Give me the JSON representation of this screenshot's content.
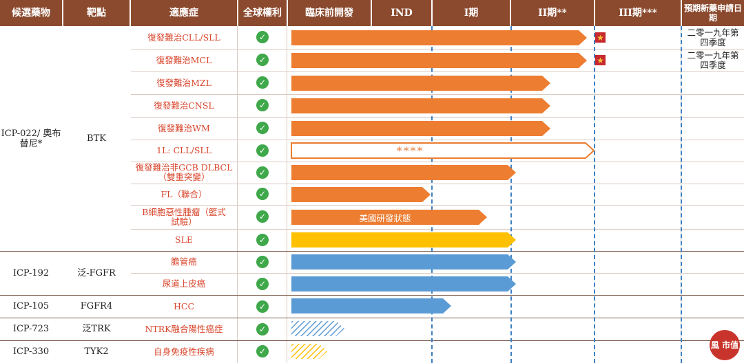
{
  "headers": {
    "candidate": "候選藥物",
    "target": "靶點",
    "indication": "適應症",
    "global_rights": "全球權利",
    "preclinical": "臨床前開發",
    "ind": "IND",
    "phase1": "I期",
    "phase2": "II期**",
    "phase3": "III期***",
    "nda": "預期新藥申請日期"
  },
  "check_symbol": "✓",
  "rows": [
    {
      "indication": "復發難治CLL/SLL",
      "progress": "II期 (complete)",
      "approval": "二零一九年第四季度",
      "star": true,
      "bar_style": "solid-orange"
    },
    {
      "indication": "復發難治MCL",
      "progress": "II期 (complete)",
      "approval": "二零一九年第四季度",
      "star": true,
      "bar_style": "solid-orange"
    },
    {
      "indication": "復發難治MZL",
      "progress": "II期",
      "bar_style": "solid-orange"
    },
    {
      "indication": "復發難治CNSL",
      "progress": "II期",
      "bar_style": "solid-orange"
    },
    {
      "indication": "復發難治WM",
      "progress": "II期",
      "bar_style": "solid-orange"
    },
    {
      "indication": "1L: CLL/SLL",
      "progress": "II期 (complete)",
      "bar_text": "****",
      "bar_style": "outline-orange"
    },
    {
      "indication": "復發難治非GCB DLBCL（雙重突變）",
      "progress": "I期 (complete)",
      "bar_style": "solid-orange"
    },
    {
      "indication": "FL（聯合）",
      "progress": "I期",
      "bar_style": "solid-orange"
    },
    {
      "indication": "B細胞惡性腫瘤（籃式試驗）",
      "progress": "I期",
      "bar_text": "美國研發狀態",
      "bar_style": "solid-orange"
    },
    {
      "indication": "SLE",
      "progress": "I期 (complete)",
      "bar_style": "solid-yellow"
    },
    {
      "indication": "膽管癌",
      "progress": "I期 (complete)",
      "bar_style": "solid-blue"
    },
    {
      "indication": "尿道上皮癌",
      "progress": "I期 (complete)",
      "bar_style": "solid-blue"
    },
    {
      "indication": "HCC",
      "progress": "I期",
      "bar_style": "solid-blue"
    },
    {
      "indication": "NTRK融合陽性癌症",
      "progress": "臨床前開發",
      "bar_style": "hatched-blue"
    },
    {
      "indication": "自身免疫性疾病",
      "progress": "臨床前開發",
      "bar_style": "hatched-yellow"
    }
  ],
  "candidates": [
    {
      "name": "ICP-022/ 奧布替尼*",
      "target": "BTK"
    },
    {
      "name": "ICP-192",
      "target": "泛-FGFR"
    },
    {
      "name": "ICP-105",
      "target": "FGFR4"
    },
    {
      "name": "ICP-723",
      "target": "泛TRK"
    },
    {
      "name": "ICP-330",
      "target": "TYK2"
    }
  ],
  "colors": {
    "header": "#8b4a2e",
    "orange": "#ed7d31",
    "blue": "#5b9bd5",
    "yellow": "#ffc000",
    "check": "#3fa84a",
    "indication_text": "#d8452b"
  },
  "logo_text": "風 市值"
}
